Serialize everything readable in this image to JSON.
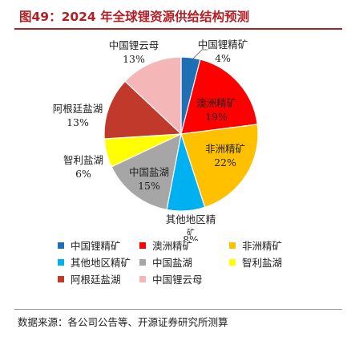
{
  "header": {
    "title": "图49：2024 年全球锂资源供给结构预测"
  },
  "footer": {
    "source": "数据来源：各公司公告等、开源证券研究所测算"
  },
  "chart_data": {
    "type": "pie",
    "categories": [
      "中国锂精矿",
      "澳洲精矿",
      "非洲精矿",
      "其他地区精矿",
      "中国盐湖",
      "智利盐湖",
      "阿根廷盐湖",
      "中国锂云母"
    ],
    "values": [
      4,
      19,
      22,
      8,
      15,
      6,
      13,
      13
    ],
    "value_labels": [
      "4%",
      "19%",
      "22%",
      "8%",
      "15%",
      "6%",
      "13%",
      "13%"
    ],
    "colors": [
      "#1f6fb4",
      "#ff0000",
      "#ffc000",
      "#00b0f0",
      "#a6a6a6",
      "#ffff00",
      "#c0392b",
      "#f4b6b6"
    ],
    "start_angle_deg": 0,
    "direction": "clockwise",
    "legend_position": "bottom"
  }
}
